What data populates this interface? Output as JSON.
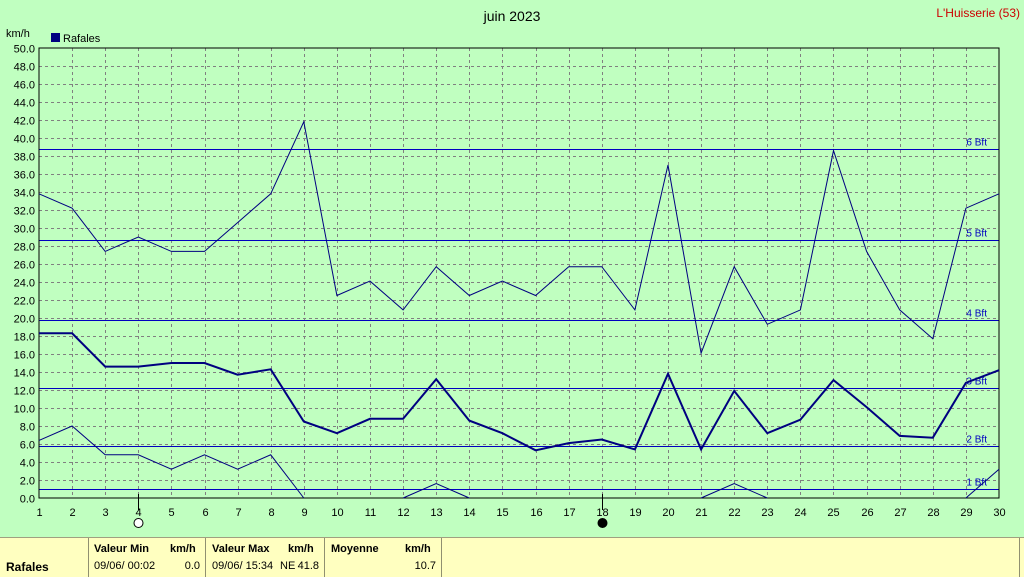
{
  "header": {
    "title": "juin 2023",
    "station": "L'Huisserie (53)"
  },
  "legend": {
    "label": "Rafales",
    "color": "#000080"
  },
  "footer": {
    "row_label": "Rafales",
    "min_title": "Valeur Min",
    "min_unit": "km/h",
    "min_datetime": "09/06/  00:02",
    "min_value": "0.0",
    "max_title": "Valeur Max",
    "max_unit": "km/h",
    "max_datetime": "09/06/  15:34",
    "max_dir": "NE",
    "max_value": "41.8",
    "avg_title": "Moyenne",
    "avg_unit": "km/h",
    "avg_value": "10.7"
  },
  "chart_data": {
    "type": "line",
    "title": "juin 2023",
    "ylabel": "km/h",
    "xlabel": "",
    "ylim": [
      0,
      50
    ],
    "xlim": [
      1,
      30
    ],
    "grid": true,
    "legend_position": "top-left",
    "x": [
      1,
      2,
      3,
      4,
      5,
      6,
      7,
      8,
      9,
      10,
      11,
      12,
      13,
      14,
      15,
      16,
      17,
      18,
      19,
      20,
      21,
      22,
      23,
      24,
      25,
      26,
      27,
      28,
      29,
      30
    ],
    "series": [
      {
        "name": "Rafales",
        "role": "max",
        "color": "#000080",
        "values": [
          33.8,
          32.2,
          27.4,
          29.0,
          27.4,
          27.4,
          30.6,
          33.8,
          41.8,
          22.5,
          24.1,
          20.9,
          25.7,
          22.5,
          24.1,
          22.5,
          25.7,
          25.7,
          20.9,
          37.0,
          16.1,
          25.7,
          19.3,
          20.9,
          38.6,
          27.4,
          20.9,
          17.7,
          32.2,
          33.8
        ]
      },
      {
        "role": "mean",
        "color": "#000080",
        "values": [
          18.3,
          18.3,
          14.6,
          14.6,
          15.0,
          15.0,
          13.7,
          14.3,
          8.5,
          7.2,
          8.8,
          8.8,
          13.2,
          8.6,
          7.2,
          5.3,
          6.1,
          6.5,
          5.4,
          13.8,
          5.4,
          11.9,
          7.2,
          8.7,
          13.1,
          10.1,
          6.9,
          6.7,
          12.8,
          14.2
        ]
      },
      {
        "role": "min",
        "color": "#000080",
        "values": [
          6.4,
          8.0,
          4.8,
          4.8,
          3.2,
          4.8,
          3.2,
          4.8,
          0.0,
          null,
          null,
          0.0,
          1.6,
          0.0,
          null,
          null,
          null,
          null,
          null,
          null,
          0.0,
          1.6,
          0.0,
          null,
          null,
          null,
          null,
          null,
          0.0,
          3.2
        ]
      }
    ],
    "beaufort_lines": [
      {
        "label": "1 Bft",
        "value": 1.0
      },
      {
        "label": "2 Bft",
        "value": 5.8
      },
      {
        "label": "3 Bft",
        "value": 12.2
      },
      {
        "label": "4 Bft",
        "value": 19.8
      },
      {
        "label": "5 Bft",
        "value": 28.7
      },
      {
        "label": "6 Bft",
        "value": 38.8
      }
    ],
    "moon_phases": [
      {
        "day": 4,
        "phase": "full"
      },
      {
        "day": 18,
        "phase": "new"
      }
    ]
  }
}
